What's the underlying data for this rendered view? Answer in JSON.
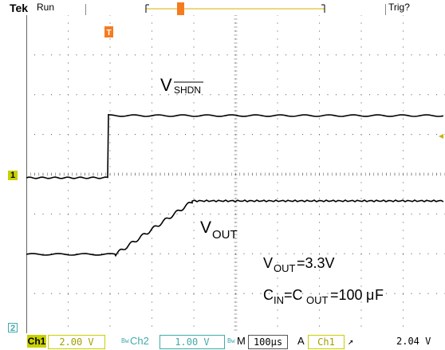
{
  "header": {
    "brand": "Tek",
    "run_state": "Run",
    "trigger_status": "Trig?",
    "trigger_position_marker": "T"
  },
  "screen": {
    "trigger_point_marker": "T",
    "ch1_marker": "1",
    "ch2_marker": "2",
    "labels": {
      "vshdn_v": "V",
      "vshdn_sub": "SHDN",
      "vout_v": "V",
      "vout_sub": "OUT",
      "spec1_v": "V",
      "spec1_sub": "OUT",
      "spec1_rest": "=3.3V",
      "spec2_c1": "C",
      "spec2_sub1": "IN",
      "spec2_eq": "=C",
      "spec2_sub2": "OUT",
      "spec2_rest": "=100",
      "spec2_mu": "μ",
      "spec2_unit": "F"
    }
  },
  "footer": {
    "ch1_label": "Ch1",
    "ch1_scale": "2.00 V",
    "bw_symbol": "Bw",
    "ch2_label": "Ch2",
    "ch2_scale": "1.00 V",
    "bw_symbol2": "Bw",
    "timebase_mode": "M",
    "timebase": "100µs",
    "acq_mode": "A",
    "trigger_source": "Ch1",
    "trigger_slope": "↗",
    "trigger_level": "2.04 V"
  },
  "colors": {
    "accent_orange": "#f47b20",
    "ch1_yellow": "#c8d000",
    "ch2_cyan": "#4aa",
    "grid_dot": "#666666",
    "trace": "#000000"
  }
}
